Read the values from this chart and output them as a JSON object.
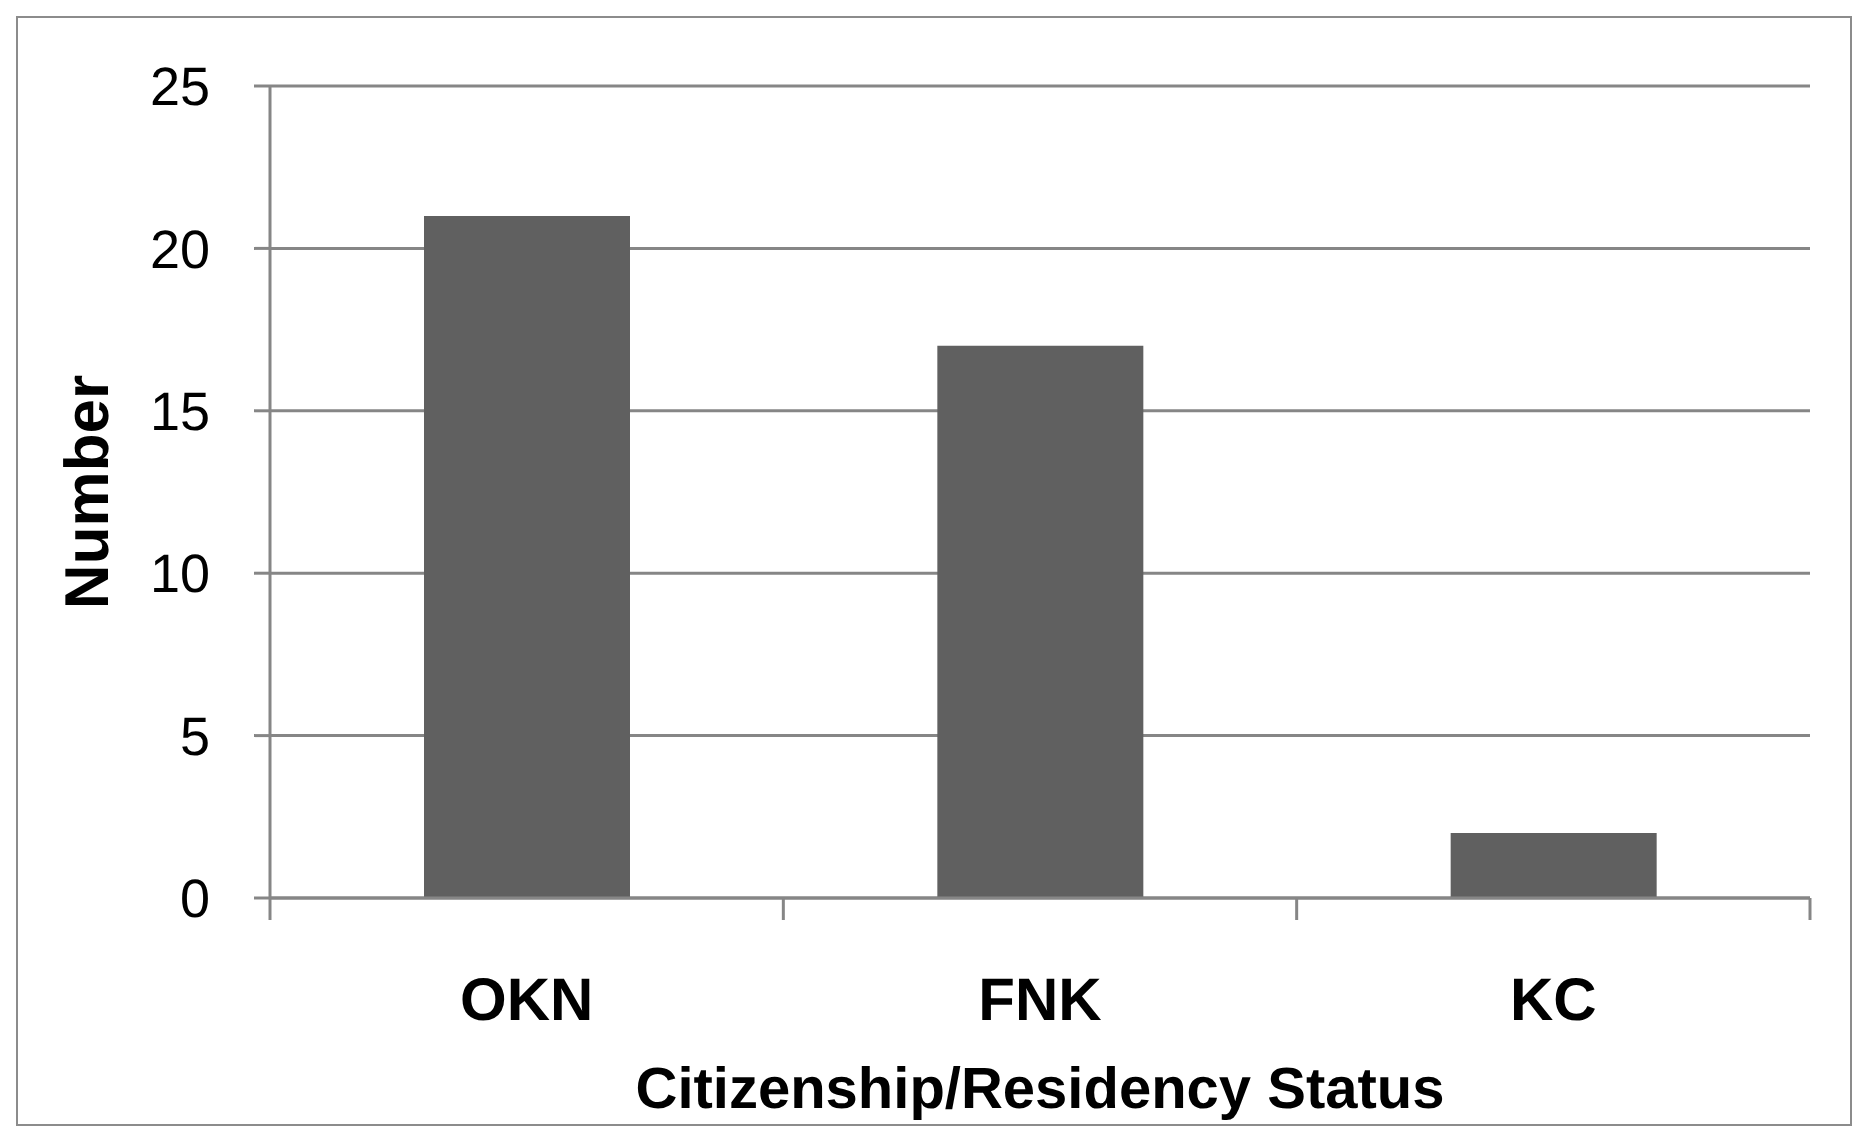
{
  "chart_data": {
    "type": "bar",
    "xlabel": "Citizenship/Residency Status",
    "ylabel": "Number",
    "categories": [
      "OKN",
      "FNK",
      "KC"
    ],
    "values": [
      21,
      17,
      2
    ],
    "color": "#606060",
    "ylim": [
      0,
      25
    ],
    "yticks": [
      0,
      5,
      10,
      15,
      20,
      25
    ],
    "grid": "y"
  }
}
